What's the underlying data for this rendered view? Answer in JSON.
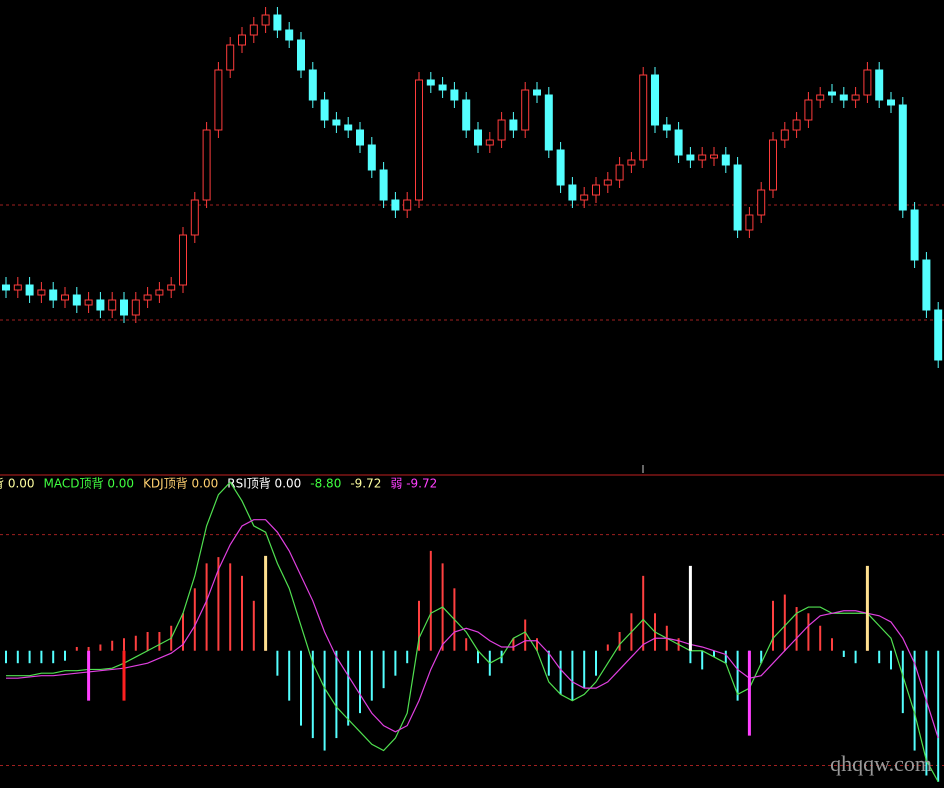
{
  "chart_data": [
    {
      "type": "candlestick",
      "open": [
        185,
        180,
        185,
        175,
        180,
        170,
        175,
        165,
        170,
        160,
        170,
        155,
        170,
        175,
        180,
        185,
        235,
        270,
        340,
        400,
        425,
        435,
        445,
        455,
        440,
        430,
        400,
        370,
        350,
        345,
        340,
        325,
        300,
        270,
        260,
        270,
        390,
        385,
        380,
        370,
        340,
        325,
        330,
        350,
        340,
        380,
        375,
        320,
        285,
        270,
        275,
        285,
        290,
        305,
        310,
        395,
        345,
        340,
        315,
        310,
        312,
        315,
        305,
        240,
        255,
        280,
        330,
        340,
        350,
        370,
        378,
        375,
        370,
        375,
        400,
        370,
        365,
        260,
        210,
        160
      ],
      "high": [
        193,
        193,
        193,
        188,
        188,
        183,
        183,
        178,
        178,
        178,
        178,
        178,
        183,
        188,
        193,
        243,
        278,
        348,
        408,
        433,
        443,
        453,
        463,
        463,
        448,
        438,
        408,
        378,
        358,
        353,
        348,
        333,
        308,
        278,
        278,
        398,
        398,
        393,
        388,
        378,
        348,
        338,
        358,
        358,
        388,
        388,
        383,
        328,
        293,
        283,
        293,
        298,
        313,
        318,
        403,
        403,
        353,
        348,
        323,
        323,
        323,
        323,
        313,
        263,
        288,
        338,
        348,
        358,
        378,
        383,
        386,
        383,
        383,
        408,
        408,
        378,
        373,
        268,
        218,
        168
      ],
      "low": [
        172,
        172,
        167,
        167,
        162,
        162,
        157,
        157,
        152,
        152,
        147,
        147,
        162,
        167,
        172,
        177,
        227,
        262,
        332,
        392,
        417,
        427,
        437,
        432,
        422,
        392,
        362,
        342,
        337,
        332,
        317,
        292,
        262,
        252,
        252,
        262,
        377,
        372,
        362,
        332,
        317,
        317,
        322,
        332,
        332,
        367,
        312,
        277,
        262,
        262,
        267,
        277,
        282,
        297,
        302,
        337,
        332,
        307,
        302,
        302,
        304,
        297,
        232,
        232,
        247,
        272,
        322,
        332,
        342,
        362,
        367,
        362,
        362,
        367,
        362,
        357,
        252,
        202,
        152,
        102
      ],
      "close": [
        180,
        185,
        175,
        180,
        170,
        175,
        165,
        170,
        160,
        170,
        155,
        170,
        175,
        180,
        185,
        235,
        270,
        340,
        400,
        425,
        435,
        445,
        455,
        440,
        430,
        400,
        370,
        350,
        345,
        340,
        325,
        300,
        270,
        260,
        270,
        390,
        385,
        380,
        370,
        340,
        325,
        330,
        350,
        340,
        380,
        375,
        320,
        285,
        270,
        275,
        285,
        290,
        305,
        310,
        395,
        345,
        340,
        315,
        310,
        315,
        315,
        305,
        240,
        255,
        280,
        330,
        340,
        350,
        370,
        375,
        375,
        370,
        375,
        400,
        370,
        365,
        260,
        210,
        160,
        110
      ],
      "ylim": [
        0,
        470
      ],
      "ref_lines": [
        265,
        150
      ],
      "up_color": "#ff3c3c",
      "down_color": "#54ffff"
    },
    {
      "type": "macd",
      "legend": [
        {
          "text": "背 0.00",
          "color": "#ffffa0"
        },
        {
          "text": "MACD顶背 0.00",
          "color": "#40ff40"
        },
        {
          "text": "KDJ顶背 0.00",
          "color": "#ffd070"
        },
        {
          "text": "RSI顶背 0.00",
          "color": "#ffffff"
        },
        {
          "text": "-8.80",
          "color": "#40ff40"
        },
        {
          "text": "-9.72",
          "color": "#ffffa0"
        },
        {
          "text": "弱 -9.72",
          "color": "#ff40ff"
        }
      ],
      "histogram": [
        -1,
        -1,
        -1,
        -1,
        -1,
        -0.8,
        0.3,
        0.3,
        0.5,
        0.8,
        1,
        1.2,
        1.5,
        1.5,
        2,
        3,
        5,
        7,
        7.5,
        7,
        6,
        4,
        0.5,
        -2,
        -4,
        -6,
        -7,
        -8,
        -7,
        -6,
        -5,
        -4,
        -3,
        -2,
        -1,
        4,
        8,
        7,
        5,
        1,
        -1,
        -2,
        -1,
        1,
        2.5,
        1,
        -2,
        -3.5,
        -4,
        -3,
        -2,
        0.5,
        1.5,
        3,
        6,
        3,
        2,
        1,
        -1,
        -1.5,
        -0.5,
        -1,
        -4,
        -3,
        -1,
        4,
        4.5,
        3.5,
        3,
        2,
        1,
        -0.5,
        -1,
        0.5,
        -1,
        -1.5,
        -5,
        -8,
        -10,
        -10.5
      ],
      "up_color": "#ff4040",
      "down_color": "#54ffff",
      "lines": [
        {
          "color": "#50e050",
          "values": [
            -2,
            -2,
            -2,
            -1.8,
            -1.8,
            -1.6,
            -1.6,
            -1.5,
            -1.5,
            -1.4,
            -1,
            -0.5,
            0,
            0.5,
            1,
            3,
            6,
            10,
            12.5,
            13.5,
            12,
            10,
            9.5,
            7,
            5,
            2,
            -1,
            -3,
            -4.5,
            -5.5,
            -6.5,
            -7.5,
            -8,
            -7,
            -5,
            1,
            3,
            3.5,
            2.5,
            1.5,
            0,
            -1,
            -0.5,
            1,
            1.5,
            0,
            -2.5,
            -3.5,
            -4,
            -3.5,
            -2.5,
            -1,
            0.5,
            1.5,
            2.5,
            1.5,
            1,
            0.5,
            0,
            0,
            -0.5,
            -1,
            -3.5,
            -3,
            -1,
            1,
            2,
            3,
            3.5,
            3.5,
            3,
            3,
            3,
            3,
            2,
            1,
            -2,
            -5,
            -8.8,
            -10.5
          ]
        },
        {
          "color": "#e040e0",
          "values": [
            -2.2,
            -2.2,
            -2.1,
            -2,
            -2,
            -1.9,
            -1.8,
            -1.7,
            -1.6,
            -1.5,
            -1.4,
            -1.2,
            -1,
            -0.6,
            -0.2,
            0.5,
            2,
            4,
            6.5,
            8.5,
            10,
            10.5,
            10.5,
            9.5,
            8,
            6,
            4,
            1.5,
            -0.5,
            -2,
            -3.5,
            -5,
            -6,
            -6.5,
            -6,
            -4,
            -1.5,
            0.5,
            1.5,
            1.8,
            1.5,
            0.8,
            0.3,
            0.3,
            0.8,
            0.8,
            -0.2,
            -1.5,
            -2.5,
            -3,
            -3,
            -2.5,
            -1.5,
            -0.5,
            0.5,
            1,
            1,
            0.8,
            0.5,
            0.3,
            0,
            -0.3,
            -1.5,
            -2.2,
            -2,
            -1,
            0,
            1,
            2,
            2.8,
            3,
            3.2,
            3.2,
            3,
            2.8,
            2.3,
            1,
            -1,
            -4,
            -7
          ]
        }
      ],
      "signals": [
        {
          "index": 7,
          "value": -4,
          "color": "#ff40ff"
        },
        {
          "index": 10,
          "value": -4,
          "color": "#ff2020"
        },
        {
          "index": 22,
          "value": 7.6,
          "color": "#ffe090"
        },
        {
          "index": 58,
          "value": 6.8,
          "color": "#ffffff"
        },
        {
          "index": 63,
          "value": -6.8,
          "color": "#ff40ff"
        },
        {
          "index": 73,
          "value": 6.8,
          "color": "#ffe090"
        }
      ],
      "ylim": [
        -11,
        14
      ],
      "ref_lines": [
        9.3,
        -9.2
      ]
    }
  ],
  "watermark": "qhqqw.com"
}
